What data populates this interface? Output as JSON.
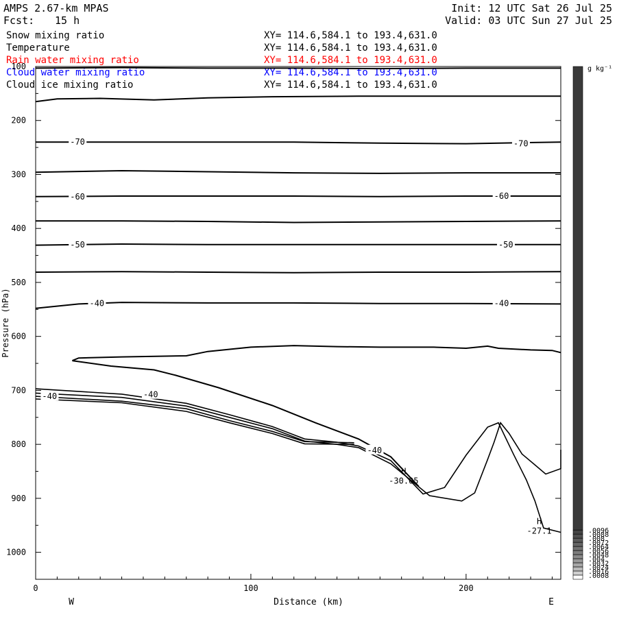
{
  "header": {
    "title_left": "AMPS 2.67-km MPAS",
    "fcst_label": "Fcst:",
    "fcst_value": "15 h",
    "init": "Init: 12 UTC Sat 26 Jul 25",
    "valid": "Valid: 03 UTC Sun 27 Jul 25"
  },
  "fields": [
    {
      "name": "Snow mixing ratio",
      "xy": "XY= 114.6,584.1 to 193.4,631.0",
      "color": "#000000"
    },
    {
      "name": "Temperature",
      "xy": "XY= 114.6,584.1 to 193.4,631.0",
      "color": "#000000"
    },
    {
      "name": "Rain water mixing ratio",
      "xy": "XY= 114.6,584.1 to 193.4,631.0",
      "color": "#ff0000"
    },
    {
      "name": "Cloud water mixing ratio",
      "xy": "XY= 114.6,584.1 to 193.4,631.0",
      "color": "#0000ff"
    },
    {
      "name": "Cloud ice mixing ratio",
      "xy": "XY= 114.6,584.1 to 193.4,631.0",
      "color": "#000000"
    }
  ],
  "chart_data": {
    "type": "line",
    "title": "",
    "xlabel": "Distance (km)",
    "ylabel": "Pressure (hPa)",
    "x_range": [
      0,
      244
    ],
    "y_range": [
      100,
      1050
    ],
    "y_inverted": true,
    "x_ticks": [
      0,
      100,
      200
    ],
    "x_tick_labels": [
      "0",
      "100",
      "200"
    ],
    "y_ticks": [
      100,
      200,
      300,
      400,
      500,
      600,
      700,
      800,
      900,
      1000
    ],
    "y_tick_labels": [
      "100",
      "200",
      "300",
      "400",
      "500",
      "600",
      "700",
      "800",
      "900",
      "1000"
    ],
    "x_end_labels": {
      "left": "W",
      "right": "E"
    },
    "contour_labels": [
      {
        "text": "-70",
        "x": 16,
        "p": 240
      },
      {
        "text": "-70",
        "x": 222,
        "p": 243
      },
      {
        "text": "-60",
        "x": 16,
        "p": 341
      },
      {
        "text": "-60",
        "x": 213,
        "p": 340
      },
      {
        "text": "-50",
        "x": 16,
        "p": 430
      },
      {
        "text": "-50",
        "x": 215,
        "p": 430
      },
      {
        "text": "-40",
        "x": 25,
        "p": 539
      },
      {
        "text": "-40",
        "x": 213,
        "p": 539
      },
      {
        "text": "-40",
        "x": 50,
        "p": 708
      },
      {
        "text": "-40",
        "x": 154,
        "p": 811
      },
      {
        "text": "-40",
        "x": 3,
        "p": 711
      }
    ],
    "extrema": [
      {
        "marker": "H",
        "value": "-30.05",
        "x": 171,
        "p": 855
      },
      {
        "marker": "H",
        "value": "-27.1",
        "x": 234,
        "p": 948
      }
    ],
    "isotherms": [
      {
        "level": -80,
        "points": [
          [
            0,
            103
          ],
          [
            40,
            102
          ],
          [
            80,
            103
          ],
          [
            120,
            103
          ],
          [
            160,
            104
          ],
          [
            200,
            103
          ],
          [
            244,
            103
          ]
        ]
      },
      {
        "level": -75,
        "points": [
          [
            0,
            165
          ],
          [
            10,
            160
          ],
          [
            30,
            159
          ],
          [
            55,
            162
          ],
          [
            80,
            158
          ],
          [
            110,
            156
          ],
          [
            150,
            155
          ],
          [
            200,
            155
          ],
          [
            244,
            155
          ]
        ]
      },
      {
        "level": -70,
        "points": [
          [
            0,
            240
          ],
          [
            40,
            240
          ],
          [
            80,
            240
          ],
          [
            120,
            240
          ],
          [
            160,
            242
          ],
          [
            200,
            243
          ],
          [
            244,
            240
          ]
        ]
      },
      {
        "level": -65,
        "points": [
          [
            0,
            296
          ],
          [
            40,
            293
          ],
          [
            80,
            295
          ],
          [
            120,
            297
          ],
          [
            160,
            298
          ],
          [
            200,
            297
          ],
          [
            244,
            297
          ]
        ]
      },
      {
        "level": -60,
        "points": [
          [
            0,
            341
          ],
          [
            40,
            340
          ],
          [
            80,
            340
          ],
          [
            120,
            340
          ],
          [
            160,
            341
          ],
          [
            200,
            340
          ],
          [
            244,
            340
          ]
        ]
      },
      {
        "level": -55,
        "points": [
          [
            0,
            386
          ],
          [
            40,
            386
          ],
          [
            80,
            387
          ],
          [
            120,
            389
          ],
          [
            160,
            388
          ],
          [
            200,
            387
          ],
          [
            244,
            386
          ]
        ]
      },
      {
        "level": -50,
        "points": [
          [
            0,
            431
          ],
          [
            40,
            429
          ],
          [
            80,
            430
          ],
          [
            120,
            430
          ],
          [
            160,
            430
          ],
          [
            200,
            430
          ],
          [
            244,
            430
          ]
        ]
      },
      {
        "level": -45,
        "points": [
          [
            0,
            481
          ],
          [
            40,
            480
          ],
          [
            80,
            481
          ],
          [
            120,
            482
          ],
          [
            160,
            481
          ],
          [
            200,
            481
          ],
          [
            244,
            480
          ]
        ]
      },
      {
        "level": -40,
        "points": [
          [
            0,
            548
          ],
          [
            20,
            540
          ],
          [
            40,
            537
          ],
          [
            80,
            538
          ],
          [
            120,
            538
          ],
          [
            160,
            539
          ],
          [
            200,
            539
          ],
          [
            244,
            540
          ]
        ]
      },
      {
        "level": -35,
        "points": [
          [
            17,
            645
          ],
          [
            20,
            640
          ],
          [
            40,
            638
          ],
          [
            70,
            636
          ],
          [
            80,
            628
          ],
          [
            100,
            620
          ],
          [
            120,
            617
          ],
          [
            140,
            619
          ],
          [
            160,
            620
          ],
          [
            185,
            620
          ],
          [
            200,
            622
          ],
          [
            210,
            618
          ],
          [
            215,
            622
          ],
          [
            230,
            625
          ],
          [
            240,
            626
          ],
          [
            244,
            630
          ]
        ]
      },
      {
        "level": -35,
        "points": [
          [
            17,
            645
          ],
          [
            35,
            655
          ],
          [
            55,
            662
          ],
          [
            65,
            672
          ],
          [
            85,
            695
          ],
          [
            110,
            728
          ],
          [
            130,
            760
          ],
          [
            150,
            790
          ],
          [
            165,
            823
          ],
          [
            178,
            878
          ]
        ]
      }
    ],
    "terrain_lines": [
      {
        "name": "surface-contour-a",
        "points": [
          [
            0,
            697
          ],
          [
            40,
            707
          ],
          [
            70,
            724
          ],
          [
            90,
            745
          ],
          [
            110,
            767
          ],
          [
            125,
            790
          ],
          [
            140,
            796
          ],
          [
            150,
            803
          ],
          [
            165,
            830
          ],
          [
            180,
            892
          ],
          [
            190,
            880
          ],
          [
            200,
            820
          ],
          [
            210,
            768
          ],
          [
            215,
            760
          ],
          [
            222,
            818
          ],
          [
            228,
            866
          ],
          [
            232,
            905
          ],
          [
            236,
            955
          ],
          [
            244,
            963
          ]
        ]
      },
      {
        "name": "surface-contour-b",
        "points": [
          [
            0,
            705
          ],
          [
            40,
            713
          ],
          [
            70,
            729
          ],
          [
            90,
            750
          ],
          [
            110,
            771
          ],
          [
            125,
            794
          ],
          [
            140,
            800
          ],
          [
            150,
            806
          ],
          [
            165,
            836
          ],
          [
            183,
            895
          ],
          [
            198,
            905
          ],
          [
            204,
            890
          ],
          [
            210,
            828
          ],
          [
            213,
            796
          ],
          [
            216,
            760
          ],
          [
            220,
            780
          ],
          [
            226,
            818
          ],
          [
            232,
            838
          ],
          [
            237,
            855
          ],
          [
            244,
            845
          ],
          [
            244,
            810
          ]
        ]
      },
      {
        "name": "surface-contour-c",
        "points": [
          [
            0,
            711
          ],
          [
            40,
            720
          ],
          [
            70,
            734
          ],
          [
            90,
            756
          ],
          [
            110,
            776
          ],
          [
            125,
            795
          ],
          [
            148,
            797
          ]
        ]
      },
      {
        "name": "surface-contour-d",
        "points": [
          [
            0,
            716
          ],
          [
            40,
            723
          ],
          [
            70,
            739
          ],
          [
            90,
            760
          ],
          [
            110,
            780
          ],
          [
            125,
            799
          ],
          [
            148,
            800
          ]
        ]
      }
    ]
  },
  "colorbar": {
    "unit": "g kg⁻¹",
    "min": 0,
    "max": 0.1,
    "labels": [
      ".0096",
      ".0088",
      ".008",
      ".0072",
      ".0064",
      ".0056",
      ".0048",
      ".004",
      ".0032",
      ".0024",
      ".0016",
      ".0008"
    ],
    "levels": [
      0.0096,
      0.0088,
      0.008,
      0.0072,
      0.0064,
      0.0056,
      0.0048,
      0.004,
      0.0032,
      0.0024,
      0.0016,
      0.0008
    ],
    "shades": [
      "#3a3a3a",
      "#454545",
      "#505050",
      "#5b5b5b",
      "#666666",
      "#717171",
      "#7c7c7c",
      "#8a8a8a",
      "#989898",
      "#a8a8a8",
      "#bbbbbb",
      "#d0d0d0",
      "#ffffff"
    ]
  }
}
